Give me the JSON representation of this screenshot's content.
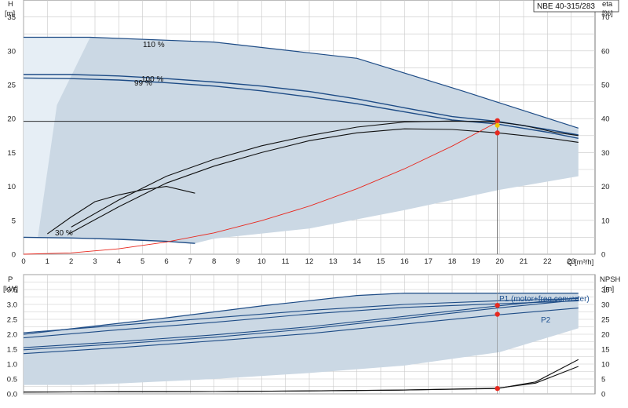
{
  "colors": {
    "envelope": "#cbd8e4",
    "envelope_light": "#e6eef5",
    "curve_blue": "#1e4c86",
    "curve_black": "#111111",
    "system_curve": "#e8281e",
    "grid": "#c8c8c8",
    "duty_marker": "#e8281e",
    "duty_marker_yellow": "#f2c200"
  },
  "chart_data": [
    {
      "type": "line",
      "panel": "head-efficiency",
      "title": "NBE 40-315/283",
      "ylabel_left": [
        "H",
        "[m]"
      ],
      "ylabel_right": [
        "eta",
        "[%]"
      ],
      "xlabel": "Q [m³/h]",
      "xlim": [
        0,
        24
      ],
      "ylim_left": [
        0,
        37.5
      ],
      "ylim_right": [
        0,
        75
      ],
      "x_ticks": [
        0,
        1,
        2,
        3,
        4,
        5,
        6,
        7,
        8,
        9,
        10,
        11,
        12,
        13,
        14,
        15,
        16,
        17,
        18,
        19,
        20,
        21,
        22,
        23
      ],
      "y_ticks_left": [
        0,
        5,
        10,
        15,
        20,
        25,
        30,
        35
      ],
      "y_ticks_right": [
        0,
        10,
        20,
        30,
        40,
        50,
        60,
        70
      ],
      "speed_labels": [
        "110 %",
        "100 %",
        "99 %",
        "30 %"
      ],
      "duty_point": {
        "q": 19.9,
        "h": 19.7,
        "eta": 35.8
      },
      "envelope_upper": [
        [
          0,
          32
        ],
        [
          2.8,
          32
        ],
        [
          8,
          31.3
        ],
        [
          14,
          28.9
        ],
        [
          18.5,
          24
        ],
        [
          23.3,
          18.6
        ]
      ],
      "envelope_lower": [
        [
          23.3,
          11.5
        ],
        [
          20,
          9.5
        ],
        [
          16,
          6.5
        ],
        [
          12,
          3.8
        ],
        [
          8,
          2.3
        ],
        [
          7.2,
          1.6
        ],
        [
          2.8,
          2.4
        ],
        [
          0,
          2.5
        ]
      ],
      "head_curves": [
        {
          "x": [
            0,
            2,
            4,
            6,
            8,
            10,
            12,
            14,
            16,
            18,
            19.9,
            22,
            23.3
          ],
          "y": [
            26.5,
            26.5,
            26.3,
            25.9,
            25.4,
            24.8,
            24,
            22.9,
            21.6,
            20.3,
            19.6,
            18.4,
            17.6
          ]
        },
        {
          "x": [
            0,
            2,
            4,
            6,
            8,
            10,
            12,
            14,
            16,
            18,
            19.9,
            22,
            23.3
          ],
          "y": [
            26,
            25.9,
            25.7,
            25.3,
            24.8,
            24.1,
            23.2,
            22.2,
            21,
            19.8,
            19.2,
            18,
            17.1
          ]
        },
        {
          "x": [
            0,
            2,
            4,
            6,
            7.2
          ],
          "y": [
            2.5,
            2.4,
            2.2,
            1.9,
            1.6
          ]
        }
      ],
      "efficiency_curves": [
        {
          "x": [
            1.9,
            4,
            6,
            8,
            10,
            12,
            14,
            16,
            18,
            19.9,
            21,
            22.3,
            23.3
          ],
          "y": [
            6,
            14,
            21,
            26,
            30,
            33.5,
            35.8,
            37,
            36.8,
            35.8,
            35,
            34,
            33
          ]
        },
        {
          "x": [
            2,
            4,
            6,
            8,
            10,
            12,
            14,
            16,
            18,
            19.9,
            21,
            22.3,
            23.3
          ],
          "y": [
            8,
            16,
            23,
            28,
            32,
            35,
            37.5,
            39,
            39.3,
            39,
            38,
            36,
            35
          ]
        },
        {
          "x": [
            1,
            2,
            3,
            4,
            5,
            6,
            7.2
          ],
          "y": [
            6,
            11,
            15.5,
            17.5,
            19,
            20,
            18
          ]
        }
      ],
      "system_curve": {
        "x": [
          0,
          2,
          4,
          6,
          8,
          10,
          12,
          14,
          16,
          18,
          19.9
        ],
        "y": [
          0,
          0.4,
          1.6,
          3.6,
          6.3,
          9.9,
          14.2,
          19.3,
          25.2,
          31.9,
          39
        ]
      },
      "reference_line_h": 19.6
    },
    {
      "type": "line",
      "panel": "power-npsh",
      "ylabel_left": [
        "P",
        "[kW]"
      ],
      "ylabel_right": [
        "NPSH",
        "[m]"
      ],
      "xlim": [
        0,
        24
      ],
      "ylim_left": [
        0,
        4
      ],
      "ylim_right": [
        0,
        40
      ],
      "y_ticks_left": [
        0.0,
        0.5,
        1.0,
        1.5,
        2.0,
        2.5,
        3.0,
        3.5
      ],
      "y_ticks_right": [
        0,
        5,
        10,
        15,
        20,
        25,
        30,
        35
      ],
      "series_labels": [
        "P1 (motor+freq.converter)",
        "P2"
      ],
      "envelope_upper": [
        [
          0,
          2.0
        ],
        [
          6,
          2.55
        ],
        [
          10,
          2.95
        ],
        [
          14,
          3.3
        ],
        [
          16,
          3.38
        ],
        [
          23.3,
          3.38
        ]
      ],
      "envelope_lower": [
        [
          23.3,
          2.2
        ],
        [
          20,
          1.4
        ],
        [
          16,
          0.95
        ],
        [
          12,
          0.7
        ],
        [
          8,
          0.5
        ],
        [
          4,
          0.35
        ],
        [
          2.5,
          0.3
        ],
        [
          0,
          0.3
        ]
      ],
      "power_curves": [
        {
          "x": [
            0,
            4,
            8,
            12,
            16,
            19.9,
            23.3
          ],
          "y": [
            1.55,
            1.75,
            1.98,
            2.25,
            2.6,
            2.95,
            3.22
          ]
        },
        {
          "x": [
            0,
            4,
            8,
            12,
            16,
            19.9,
            23.3
          ],
          "y": [
            1.48,
            1.68,
            1.9,
            2.18,
            2.53,
            2.88,
            3.15
          ]
        },
        {
          "x": [
            0,
            4,
            8,
            12,
            16,
            19.9,
            23.3
          ],
          "y": [
            1.35,
            1.55,
            1.78,
            2.02,
            2.34,
            2.65,
            2.88
          ]
        },
        {
          "x": [
            0,
            4,
            8,
            12,
            16,
            19.9,
            23.3
          ],
          "y": [
            2.05,
            2.3,
            2.55,
            2.8,
            3.0,
            3.12,
            3.2
          ]
        },
        {
          "x": [
            0,
            4,
            8,
            12,
            16,
            19.9,
            23.3
          ],
          "y": [
            1.88,
            2.15,
            2.4,
            2.68,
            2.9,
            3.02,
            3.12
          ]
        }
      ],
      "npsh_curves": [
        {
          "x": [
            0,
            4,
            8,
            12,
            16,
            19.9,
            21.5,
            23.3
          ],
          "y": [
            0.6,
            0.7,
            0.8,
            1.0,
            1.3,
            1.8,
            4,
            11.5
          ]
        },
        {
          "x": [
            0,
            4,
            8,
            12,
            16,
            19.9,
            21.5,
            23.3
          ],
          "y": [
            0.6,
            0.7,
            0.8,
            1.0,
            1.3,
            1.9,
            3.6,
            9.2
          ]
        }
      ],
      "duty_points": [
        {
          "q": 19.9,
          "p": 2.97
        },
        {
          "q": 19.9,
          "p": 2.67
        },
        {
          "q": 19.9,
          "npsh": 1.8
        }
      ]
    }
  ]
}
